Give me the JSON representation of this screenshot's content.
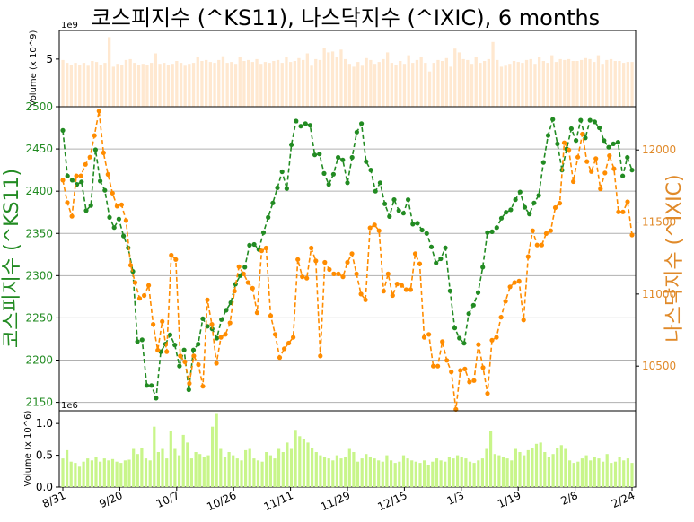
{
  "chart_data": [
    {
      "type": "line",
      "title": "코스피지수 (^KS11), 나스닥지수 (^IXIC), 6 months",
      "x_tick_labels": [
        "8/31",
        "9/20",
        "10/7",
        "10/26",
        "11/11",
        "11/29",
        "12/15",
        "1/3",
        "1/19",
        "2/8",
        "2/24"
      ],
      "left_axis": {
        "label": "코스피지수 (^KS11)",
        "ticks": [
          2150,
          2200,
          2250,
          2300,
          2350,
          2400,
          2450,
          2500
        ],
        "ylim": [
          2140,
          2500
        ],
        "color": "#228b22"
      },
      "right_axis": {
        "label": "나스닥지수 (^IXIC)",
        "ticks": [
          10500,
          11000,
          11500,
          12000
        ],
        "ylim": [
          10190,
          12300
        ],
        "color": "#ff8c00"
      },
      "grid": true,
      "series": [
        {
          "axis": "left",
          "color": "#228b22",
          "values": [
            2472,
            2418,
            2413,
            2408,
            2411,
            2377,
            2383,
            2449,
            2412,
            2401,
            2369,
            2357,
            2367,
            2347,
            2333,
            2305,
            2222,
            2224,
            2170,
            2170,
            2155,
            2210,
            2219,
            2230,
            2218,
            2193,
            2212,
            2165,
            2212,
            2219,
            2249,
            2240,
            2237,
            2226,
            2248,
            2259,
            2268,
            2290,
            2300,
            2310,
            2336,
            2337,
            2331,
            2351,
            2369,
            2386,
            2404,
            2423,
            2403,
            2455,
            2483,
            2477,
            2480,
            2478,
            2443,
            2444,
            2421,
            2408,
            2420,
            2440,
            2437,
            2410,
            2440,
            2470,
            2480,
            2435,
            2425,
            2400,
            2410,
            2385,
            2370,
            2390,
            2377,
            2374,
            2390,
            2361,
            2362,
            2354,
            2350,
            2334,
            2315,
            2320,
            2333,
            2282,
            2238,
            2226,
            2220,
            2255,
            2265,
            2280,
            2310,
            2351,
            2352,
            2357,
            2368,
            2375,
            2378,
            2390,
            2399,
            2381,
            2373,
            2386,
            2395,
            2434,
            2466,
            2485,
            2456,
            2425,
            2450,
            2474,
            2460,
            2484,
            2463,
            2484,
            2482,
            2475,
            2460,
            2452,
            2456,
            2458,
            2418,
            2440,
            2425
          ]
        },
        {
          "axis": "right",
          "color": "#ff8c00",
          "values": [
            11790,
            11635,
            11540,
            11820,
            11820,
            11900,
            11950,
            12100,
            12270,
            11980,
            11830,
            11700,
            11610,
            11620,
            11510,
            11200,
            11080,
            10970,
            10990,
            11060,
            10790,
            10610,
            10810,
            10600,
            11270,
            11240,
            10570,
            10530,
            10380,
            10570,
            10510,
            10360,
            10960,
            10790,
            10520,
            10700,
            10720,
            10800,
            11020,
            11190,
            11140,
            11080,
            11040,
            10870,
            11300,
            11320,
            10850,
            10720,
            10560,
            10620,
            10660,
            10700,
            11240,
            11120,
            11110,
            11320,
            11230,
            10570,
            11220,
            11170,
            11140,
            11140,
            11120,
            11220,
            11280,
            11140,
            11000,
            10960,
            11460,
            11480,
            11440,
            11020,
            11140,
            10990,
            11070,
            11060,
            11030,
            11030,
            11280,
            11210,
            10700,
            10720,
            10500,
            10500,
            10670,
            10540,
            10460,
            10200,
            10470,
            10480,
            10390,
            10400,
            10650,
            10490,
            10310,
            10680,
            10700,
            10840,
            10950,
            11050,
            11080,
            11090,
            10820,
            11260,
            11440,
            11340,
            11340,
            11420,
            11440,
            11600,
            11630,
            12050,
            12000,
            11780,
            11950,
            12110,
            11920,
            11850,
            11940,
            11730,
            11840,
            11960,
            11870,
            11570,
            11570,
            11640,
            11410
          ]
        }
      ]
    },
    {
      "type": "bar",
      "title": "",
      "ylabel": "Volume (x 10^9)",
      "offset_text": "1e9",
      "ticks": [
        5
      ],
      "ylim": [
        0,
        8
      ],
      "color": "#ffe8d0",
      "values": [
        4.9,
        4.6,
        4.4,
        4.6,
        4.4,
        4.6,
        4.3,
        4.8,
        4.7,
        4.4,
        4.6,
        7.3,
        4.2,
        4.5,
        4.4,
        4.9,
        5.0,
        4.6,
        4.4,
        4.5,
        4.4,
        4.6,
        5.6,
        4.5,
        4.6,
        4.4,
        4.5,
        4.8,
        4.6,
        4.3,
        4.5,
        4.6,
        5.2,
        4.8,
        4.9,
        4.7,
        4.6,
        4.9,
        5.3,
        4.6,
        4.7,
        4.5,
        5.2,
        4.8,
        4.9,
        4.7,
        5.0,
        4.5,
        4.7,
        4.6,
        4.8,
        4.9,
        4.6,
        5.2,
        4.7,
        4.8,
        5.1,
        4.9,
        5.6,
        4.3,
        5.0,
        4.9,
        6.2,
        5.7,
        5.8,
        5.2,
        6.0,
        5.0,
        4.5,
        4.2,
        4.7,
        4.3,
        5.1,
        4.9,
        4.5,
        4.7,
        5.0,
        5.7,
        4.6,
        4.4,
        4.8,
        4.5,
        5.4,
        4.6,
        4.9,
        5.2,
        4.6,
        3.7,
        4.6,
        4.9,
        4.8,
        5.1,
        4.2,
        6.1,
        5.7,
        5.0,
        4.9,
        4.5,
        5.2,
        4.6,
        4.8,
        5.0,
        6.8,
        4.9,
        4.2,
        4.3,
        4.5,
        4.8,
        4.7,
        4.6,
        4.9,
        5.0,
        4.5,
        5.2,
        4.8,
        4.6,
        5.4,
        4.7,
        5.0,
        4.9,
        5.0,
        4.8,
        4.8,
        4.9,
        5.1,
        5.0,
        4.7,
        5.4,
        4.5,
        4.9,
        5.0,
        4.8,
        4.8,
        4.6,
        4.7,
        4.7
      ]
    },
    {
      "type": "bar",
      "title": "",
      "ylabel": "Volume (x 10^6)",
      "offset_text": "1e6",
      "ticks": [
        0.0,
        0.5,
        1.0
      ],
      "ylim": [
        0,
        1.2
      ],
      "color": "#c8f58a",
      "values": [
        0.45,
        0.58,
        0.4,
        0.38,
        0.32,
        0.4,
        0.45,
        0.42,
        0.48,
        0.4,
        0.45,
        0.42,
        0.44,
        0.4,
        0.38,
        0.42,
        0.43,
        0.6,
        0.52,
        0.62,
        0.45,
        0.42,
        0.95,
        0.55,
        0.6,
        0.45,
        0.88,
        0.6,
        0.5,
        0.82,
        0.7,
        0.45,
        0.55,
        0.52,
        0.48,
        0.5,
        0.95,
        1.15,
        0.6,
        0.48,
        0.55,
        0.5,
        0.45,
        0.42,
        0.58,
        0.6,
        0.45,
        0.42,
        0.4,
        0.55,
        0.5,
        0.45,
        0.6,
        0.55,
        0.7,
        0.6,
        0.9,
        0.8,
        0.75,
        0.7,
        0.62,
        0.55,
        0.5,
        0.48,
        0.45,
        0.42,
        0.5,
        0.45,
        0.48,
        0.6,
        0.55,
        0.4,
        0.45,
        0.52,
        0.48,
        0.45,
        0.42,
        0.4,
        0.5,
        0.42,
        0.38,
        0.4,
        0.5,
        0.45,
        0.42,
        0.4,
        0.38,
        0.42,
        0.35,
        0.4,
        0.45,
        0.42,
        0.4,
        0.48,
        0.45,
        0.5,
        0.48,
        0.45,
        0.4,
        0.38,
        0.42,
        0.45,
        0.6,
        0.88,
        0.52,
        0.5,
        0.48,
        0.45,
        0.42,
        0.6,
        0.55,
        0.5,
        0.58,
        0.62,
        0.68,
        0.7,
        0.55,
        0.48,
        0.52,
        0.62,
        0.66,
        0.6,
        0.42,
        0.38,
        0.4,
        0.45,
        0.5,
        0.42,
        0.48,
        0.45,
        0.4,
        0.52,
        0.38,
        0.4,
        0.48,
        0.42,
        0.45,
        0.38
      ]
    }
  ]
}
